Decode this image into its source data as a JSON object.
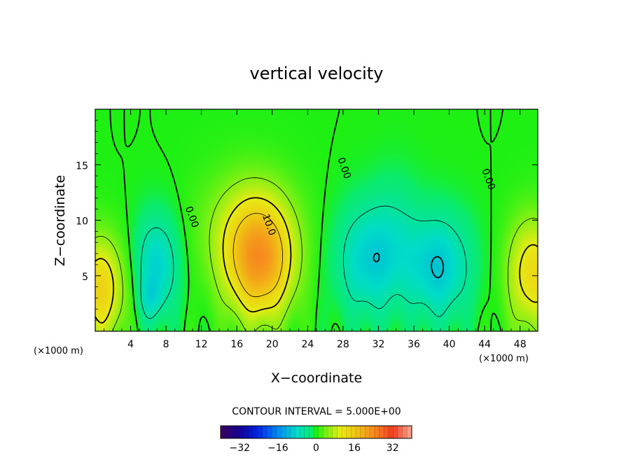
{
  "chart_data": {
    "type": "contour",
    "title": "vertical velocity",
    "xlabel": "X−coordinate",
    "ylabel": "Z−coordinate",
    "x_unit_left": "(×1000 m)",
    "x_unit_right": "(×1000 m)",
    "xlim": [
      0,
      50
    ],
    "ylim": [
      0,
      20
    ],
    "x_ticks": [
      4,
      8,
      12,
      16,
      20,
      24,
      28,
      32,
      36,
      40,
      44,
      48
    ],
    "y_ticks": [
      5,
      10,
      15
    ],
    "contour_interval_text": "CONTOUR INTERVAL = 5.000E+00",
    "contour_labels": [
      {
        "text": "0.00",
        "x": 10.6,
        "z": 10.2
      },
      {
        "text": "10.0",
        "x": 19.3,
        "z": 9.5
      },
      {
        "text": "0.00",
        "x": 27.8,
        "z": 14.6
      },
      {
        "text": "0.00",
        "x": 44.1,
        "z": 13.6
      }
    ],
    "centers": [
      {
        "x": 0.6,
        "z": 3.8,
        "amp": 14,
        "sx": 1.9,
        "sz": 3.3
      },
      {
        "x": 49.4,
        "z": 5.2,
        "amp": 13,
        "sx": 2.0,
        "sz": 3.6
      },
      {
        "x": 18.6,
        "z": 6.2,
        "amp": 19,
        "sx": 2.6,
        "sz": 3.6
      },
      {
        "x": 17.2,
        "z": 9.0,
        "amp": 7,
        "sx": 3.8,
        "sz": 3.8
      },
      {
        "x": 7.0,
        "z": 6.0,
        "amp": -9,
        "sx": 1.8,
        "sz": 3.2
      },
      {
        "x": 6.2,
        "z": 2.8,
        "amp": -4,
        "sx": 0.9,
        "sz": 1.4
      },
      {
        "x": 30.8,
        "z": 6.4,
        "amp": -9,
        "sx": 2.6,
        "sz": 3.6
      },
      {
        "x": 38.8,
        "z": 5.8,
        "amp": -10,
        "sx": 2.6,
        "sz": 3.4
      },
      {
        "x": 34.0,
        "z": 9.0,
        "amp": -3,
        "sx": 2.0,
        "sz": 4.0
      }
    ],
    "colorbar": {
      "range": [
        -40,
        40
      ],
      "ticks": [
        -32,
        -16,
        0,
        16,
        32
      ],
      "tick_labels": [
        "−32",
        "−16",
        "0",
        "16",
        "32"
      ]
    }
  },
  "colors": {
    "background": "#ffffff",
    "axis": "#000000",
    "field_zero": "#1ef014"
  }
}
